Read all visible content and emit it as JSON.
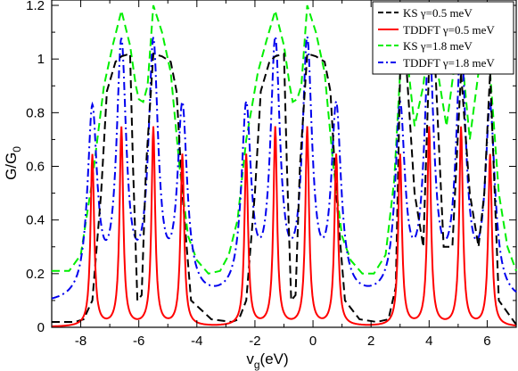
{
  "chart_data": {
    "type": "line",
    "xlabel": {
      "main": "v",
      "sub": "g",
      "rest": "(eV)"
    },
    "ylabel": {
      "main": "G/G",
      "sub": "0"
    },
    "xlim": [
      -9,
      7
    ],
    "ylim": [
      0,
      1.22
    ],
    "xticks": [
      -8,
      -6,
      -4,
      -2,
      0,
      2,
      4,
      6
    ],
    "xtick_labels": [
      "-8",
      "-6",
      "-4",
      "-2",
      "0",
      "2",
      "4",
      "6"
    ],
    "yticks": [
      0,
      0.2,
      0.4,
      0.6,
      0.8,
      1,
      1.2
    ],
    "ytick_labels": [
      "0",
      "0.2",
      "0.4",
      "0.6",
      "0.8",
      "1",
      "1.2"
    ],
    "legend_position": "top-right",
    "peaks": [
      {
        "x": -7.6,
        "red": 0.64,
        "blue": 0.7
      },
      {
        "x": -6.6,
        "red": 0.74,
        "blue": 0.93
      },
      {
        "x": -5.5,
        "red": 0.74,
        "blue": 0.93
      },
      {
        "x": -4.5,
        "red": 0.64,
        "blue": 0.7
      },
      {
        "x": -2.3,
        "red": 0.64,
        "blue": 0.7
      },
      {
        "x": -1.3,
        "red": 0.74,
        "blue": 0.93
      },
      {
        "x": -0.2,
        "red": 0.74,
        "blue": 0.93
      },
      {
        "x": 0.8,
        "red": 0.64,
        "blue": 0.7
      },
      {
        "x": 3.0,
        "red": 0.64,
        "blue": 0.7
      },
      {
        "x": 4.0,
        "red": 0.74,
        "blue": 0.93
      },
      {
        "x": 5.1,
        "red": 0.74,
        "blue": 0.93
      },
      {
        "x": 6.1,
        "red": 0.64,
        "blue": 0.7
      }
    ],
    "series": [
      {
        "name": "KS γ=0.5 meV",
        "color": "#000000",
        "dash": "9,5",
        "x": [
          -9,
          -8.2,
          -7.9,
          -7.6,
          -7.3,
          -7.1,
          -6.8,
          -6.6,
          -6.3,
          -6.2,
          -6.05,
          -5.9,
          -5.75,
          -5.5,
          -5.2,
          -4.9,
          -4.7,
          -4.5,
          -4.2,
          -3.5,
          -2.8,
          -2.55,
          -2.3,
          -2.0,
          -1.8,
          -1.5,
          -1.3,
          -1.0,
          -0.9,
          -0.75,
          -0.6,
          -0.45,
          -0.2,
          0.1,
          0.4,
          0.6,
          0.8,
          1.1,
          1.6,
          2.2,
          2.6,
          2.85,
          3.0,
          3.2,
          3.5,
          3.8,
          4.0,
          4.2,
          4.5,
          4.8,
          5.1,
          5.4,
          5.7,
          5.9,
          6.1,
          6.4,
          7
        ],
        "y": [
          0.02,
          0.02,
          0.03,
          0.1,
          0.5,
          0.88,
          0.99,
          1.01,
          1.02,
          0.6,
          0.1,
          0.12,
          0.6,
          1.02,
          1.01,
          0.99,
          0.88,
          0.5,
          0.1,
          0.03,
          0.02,
          0.03,
          0.1,
          0.5,
          0.88,
          0.99,
          1.01,
          1.02,
          0.6,
          0.1,
          0.12,
          0.6,
          1.02,
          1.01,
          0.99,
          0.88,
          0.5,
          0.1,
          0.03,
          0.02,
          0.03,
          0.15,
          0.95,
          1.0,
          0.5,
          0.3,
          0.98,
          1.0,
          0.3,
          0.3,
          0.95,
          0.5,
          0.3,
          0.5,
          0.95,
          0.1,
          0.01
        ]
      },
      {
        "name": "TDDFT γ=0.5 meV",
        "color": "#ff0000",
        "dash": "",
        "x": [],
        "y": []
      },
      {
        "name": "KS γ=1.8 meV",
        "color": "#00ee00",
        "dash": "9,5",
        "x": [
          -9,
          -8.4,
          -8.0,
          -7.6,
          -7.2,
          -6.9,
          -6.6,
          -6.3,
          -6.1,
          -6.0,
          -5.85,
          -5.7,
          -5.5,
          -5.2,
          -4.9,
          -4.6,
          -4.3,
          -4.0,
          -3.6,
          -3.2,
          -2.9,
          -2.6,
          -2.3,
          -1.9,
          -1.6,
          -1.3,
          -1.0,
          -0.8,
          -0.7,
          -0.55,
          -0.4,
          -0.2,
          0.1,
          0.4,
          0.7,
          1.0,
          1.3,
          1.7,
          2.1,
          2.5,
          2.8,
          3.0,
          3.2,
          3.5,
          3.8,
          4.0,
          4.3,
          4.6,
          4.9,
          5.1,
          5.4,
          5.7,
          5.9,
          6.1,
          6.4,
          6.7,
          7
        ],
        "y": [
          0.21,
          0.21,
          0.27,
          0.55,
          0.9,
          1.05,
          1.18,
          1.05,
          0.9,
          0.85,
          0.84,
          0.9,
          1.2,
          1.1,
          0.95,
          0.6,
          0.34,
          0.25,
          0.2,
          0.21,
          0.27,
          0.4,
          0.7,
          0.95,
          1.07,
          1.18,
          1.05,
          0.9,
          0.84,
          0.85,
          0.9,
          1.2,
          1.1,
          0.95,
          0.6,
          0.34,
          0.25,
          0.2,
          0.2,
          0.27,
          0.55,
          0.95,
          1.05,
          0.75,
          0.9,
          1.1,
          0.95,
          0.75,
          1.0,
          1.05,
          0.7,
          0.95,
          1.15,
          0.95,
          0.5,
          0.3,
          0.21
        ]
      },
      {
        "name": "TDDFT γ=1.8 meV",
        "color": "#0000ee",
        "dash": "9,4,2,4",
        "x": [],
        "y": []
      }
    ]
  }
}
